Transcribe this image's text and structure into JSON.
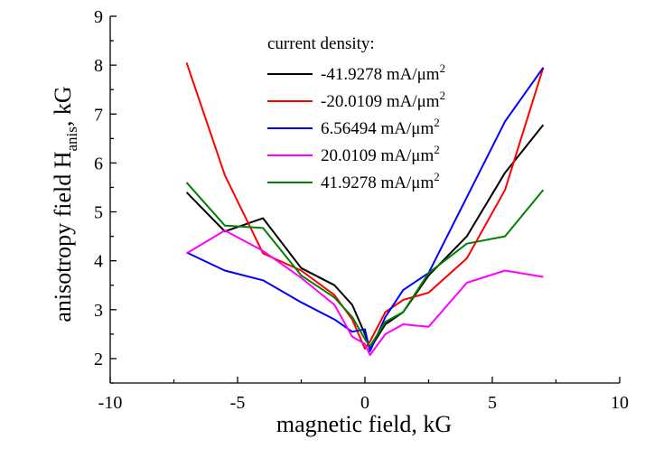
{
  "chart_data": {
    "type": "line",
    "xlabel": "magnetic field, kG",
    "ylabel": {
      "main": "anisotropy field H",
      "sub": "anis",
      "unit": ", kG"
    },
    "xlim": [
      -10,
      10
    ],
    "ylim": [
      1.5,
      9
    ],
    "xticks": [
      -10,
      -5,
      0,
      5,
      10
    ],
    "yticks": [
      2,
      3,
      4,
      5,
      6,
      7,
      8,
      9
    ],
    "grid": false,
    "legend": {
      "title": "current density:",
      "placement": "top-center",
      "unit_base": "mA/μm",
      "unit_sup": "2"
    },
    "series": [
      {
        "name": "-41.9278",
        "color": "#000000",
        "x": [
          -7,
          -5.5,
          -4,
          -2.5,
          -1.2,
          -0.5,
          0,
          0.2,
          0.8,
          1.5,
          2.5,
          4,
          5.5,
          7
        ],
        "y": [
          5.4,
          4.6,
          4.87,
          3.85,
          3.5,
          3.1,
          2.5,
          2.2,
          2.7,
          2.95,
          3.7,
          4.5,
          5.8,
          6.78
        ]
      },
      {
        "name": "-20.0109",
        "color": "#ff0000",
        "x": [
          -7,
          -5.5,
          -4,
          -2.5,
          -1.2,
          -0.5,
          0,
          0.2,
          0.8,
          1.5,
          2.5,
          4,
          5.5,
          7
        ],
        "y": [
          8.05,
          5.75,
          4.15,
          3.8,
          3.3,
          2.8,
          2.2,
          2.35,
          2.95,
          3.2,
          3.35,
          4.05,
          5.45,
          7.95
        ]
      },
      {
        "name": "6.56494",
        "color": "#0000ff",
        "x": [
          -7,
          -5.5,
          -4,
          -2.5,
          -1.2,
          -0.5,
          0,
          0.2,
          0.8,
          1.5,
          2.5,
          4,
          5.5,
          7
        ],
        "y": [
          4.17,
          3.8,
          3.6,
          3.15,
          2.8,
          2.55,
          2.6,
          2.15,
          2.85,
          3.4,
          3.75,
          5.3,
          6.85,
          7.95
        ]
      },
      {
        "name": "20.0109",
        "color": "#ff00ff",
        "x": [
          -7,
          -5.5,
          -4,
          -2.5,
          -1.2,
          -0.5,
          0,
          0.2,
          0.8,
          1.5,
          2.5,
          4,
          5.5,
          7
        ],
        "y": [
          4.15,
          4.62,
          4.2,
          3.65,
          3.1,
          2.45,
          2.3,
          2.07,
          2.5,
          2.7,
          2.65,
          3.55,
          3.8,
          3.67
        ]
      },
      {
        "name": "41.9278",
        "color": "#008000",
        "x": [
          -7,
          -5.5,
          -4,
          -2.5,
          -1.2,
          -0.5,
          0,
          0.2,
          0.8,
          1.5,
          2.5,
          4,
          5.5,
          7
        ],
        "y": [
          5.6,
          4.72,
          4.67,
          3.7,
          3.25,
          2.85,
          2.4,
          2.25,
          2.75,
          2.95,
          3.75,
          4.35,
          4.5,
          5.45
        ]
      }
    ]
  }
}
